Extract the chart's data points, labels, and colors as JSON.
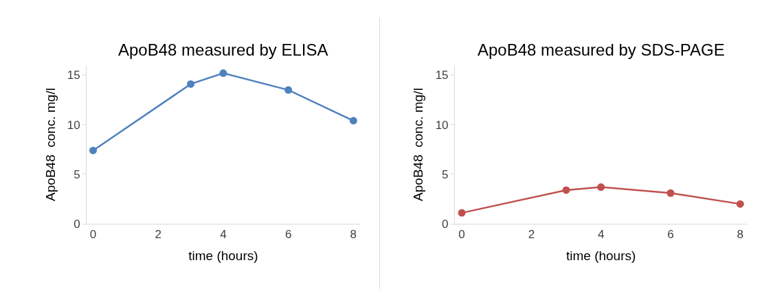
{
  "chart_data": [
    {
      "type": "line",
      "title": "ApoB48 measured by ELISA",
      "xlabel": "time (hours)",
      "ylabel": "ApoB48  conc. mg/l",
      "x": [
        0,
        3,
        4,
        6,
        8
      ],
      "series": [
        {
          "color": "#4f81bd",
          "values": [
            7.4,
            14.1,
            15.2,
            13.5,
            10.4
          ]
        }
      ],
      "xlim": [
        -0.2,
        8.2
      ],
      "ylim": [
        0,
        16
      ],
      "xticks": [
        0,
        2,
        4,
        6,
        8
      ],
      "yticks": [
        0,
        5,
        10,
        15
      ],
      "marker": "circle",
      "line_style": "solid"
    },
    {
      "type": "line",
      "title": "ApoB48 measured by SDS-PAGE",
      "xlabel": "time (hours)",
      "ylabel": "ApoB48  conc. mg/l",
      "x": [
        0,
        3,
        4,
        6,
        8
      ],
      "series": [
        {
          "color": "#c0504d",
          "values": [
            1.1,
            3.4,
            3.7,
            3.1,
            2.0
          ]
        }
      ],
      "xlim": [
        -0.2,
        8.2
      ],
      "ylim": [
        0,
        16
      ],
      "xticks": [
        0,
        2,
        4,
        6,
        8
      ],
      "yticks": [
        0,
        5,
        10,
        15
      ],
      "marker": "circle",
      "line_style": "solid"
    }
  ]
}
